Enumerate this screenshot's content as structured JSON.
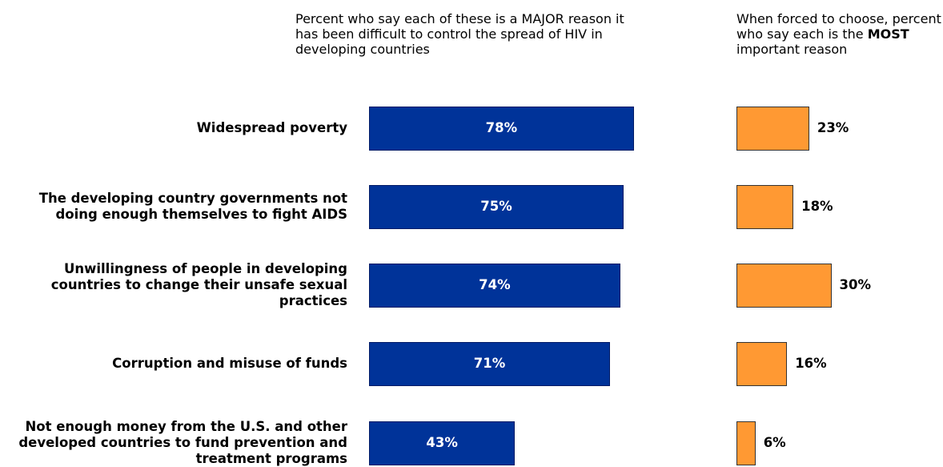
{
  "header": {
    "major_text": "Percent who say each of these is a MAJOR reason it has been difficult to control the spread of HIV in developing countries",
    "most_prefix": "When forced to choose, percent who say each is the ",
    "most_bold": "MOST",
    "most_suffix": " important reason"
  },
  "chart_data": [
    {
      "type": "bar",
      "orientation": "horizontal",
      "categories": [
        "Widespread poverty",
        "The developing country governments not doing enough themselves to fight AIDS",
        "Unwillingness of people in developing countries to change their unsafe sexual practices",
        "Corruption and misuse of funds",
        "Not enough money from the U.S. and other developed countries to fund prevention and treatment programs"
      ],
      "values": [
        78,
        75,
        74,
        71,
        43
      ],
      "labels": [
        "78%",
        "75%",
        "74%",
        "71%",
        "43%"
      ],
      "color": "#003399"
    },
    {
      "type": "bar",
      "orientation": "horizontal",
      "categories": [
        "Widespread poverty",
        "The developing country governments not doing enough themselves to fight AIDS",
        "Unwillingness of people in developing countries to change their unsafe sexual practices",
        "Corruption and misuse of funds",
        "Not enough money from the U.S. and other developed countries to fund prevention and treatment programs"
      ],
      "values": [
        23,
        18,
        30,
        16,
        6
      ],
      "labels": [
        "23%",
        "18%",
        "30%",
        "16%",
        "6%"
      ],
      "color": "#ff9933"
    }
  ]
}
